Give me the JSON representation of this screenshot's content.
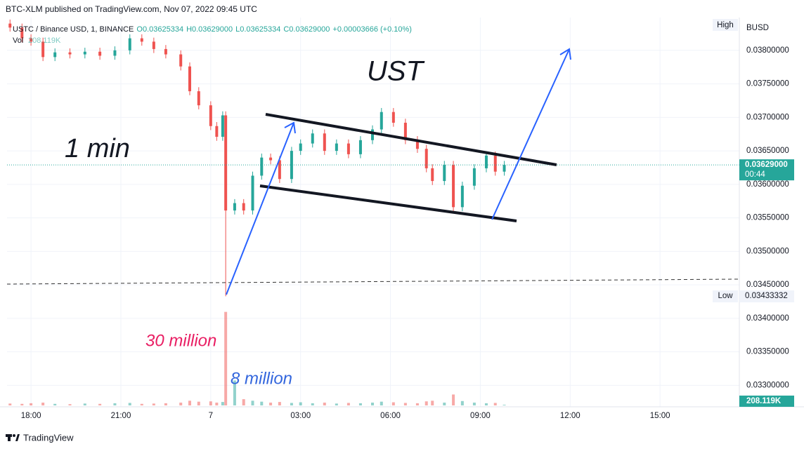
{
  "header": {
    "published": "BTC-XLM published on TradingView.com, Nov 07, 2022 09:45 UTC",
    "legend": [
      "USTC / Binance USD, 1, BINANCE",
      "O0.03625334",
      "H0.03629000",
      "L0.03625334",
      "C0.03629000",
      "+0.00003666 (+0.10%)"
    ],
    "volume_label": "Vol",
    "volume_value": "208.119K"
  },
  "chart_data": {
    "type": "candlestick",
    "x": [
      17.3,
      17.7,
      18.0,
      18.4,
      18.8,
      19.3,
      19.8,
      20.3,
      20.8,
      21.3,
      21.7,
      22.1,
      22.5,
      23.0,
      23.3,
      23.6,
      24.0,
      24.2,
      24.4,
      24.5,
      24.8,
      25.1,
      25.4,
      25.7,
      26.0,
      26.3,
      26.7,
      27.0,
      27.4,
      27.8,
      28.2,
      28.6,
      29.0,
      29.4,
      29.7,
      30.1,
      30.5,
      30.9,
      31.2,
      31.4,
      31.8,
      32.1,
      32.4,
      32.8,
      33.2,
      33.5,
      33.8
    ],
    "open": [
      0.0384,
      0.03834,
      0.03818,
      0.03813,
      0.0379,
      0.03797,
      0.03794,
      0.03798,
      0.03792,
      0.038,
      0.03818,
      0.03813,
      0.03802,
      0.03794,
      0.03776,
      0.03739,
      0.03718,
      0.03687,
      0.03671,
      0.03703,
      0.03561,
      0.03572,
      0.03561,
      0.03613,
      0.0364,
      0.03636,
      0.03608,
      0.0365,
      0.03661,
      0.03676,
      0.0365,
      0.03661,
      0.03645,
      0.03666,
      0.03682,
      0.03708,
      0.03692,
      0.03666,
      0.03653,
      0.03624,
      0.03605,
      0.03629,
      0.03566,
      0.03598,
      0.03624,
      0.03643,
      0.03619
    ],
    "high": [
      0.03846,
      0.0384,
      0.03824,
      0.03819,
      0.03803,
      0.03803,
      0.03804,
      0.03804,
      0.03806,
      0.03824,
      0.03824,
      0.03819,
      0.03808,
      0.038,
      0.03782,
      0.03745,
      0.03724,
      0.03693,
      0.03709,
      0.03709,
      0.03578,
      0.03578,
      0.03619,
      0.03646,
      0.03646,
      0.03642,
      0.03656,
      0.03667,
      0.03682,
      0.03682,
      0.03667,
      0.03667,
      0.03672,
      0.03688,
      0.03714,
      0.03714,
      0.03698,
      0.03672,
      0.03659,
      0.0363,
      0.03635,
      0.03635,
      0.03604,
      0.0363,
      0.03649,
      0.03649,
      0.03635
    ],
    "low": [
      0.03828,
      0.03812,
      0.03807,
      0.03784,
      0.03784,
      0.03788,
      0.03788,
      0.03786,
      0.03786,
      0.03794,
      0.03807,
      0.03796,
      0.03788,
      0.0377,
      0.03733,
      0.03712,
      0.03681,
      0.03665,
      0.03665,
      0.03433,
      0.03555,
      0.03555,
      0.03555,
      0.03607,
      0.0363,
      0.03602,
      0.03602,
      0.03644,
      0.03655,
      0.03644,
      0.03644,
      0.03639,
      0.03639,
      0.0366,
      0.03676,
      0.03686,
      0.0366,
      0.03647,
      0.03618,
      0.03599,
      0.03599,
      0.0356,
      0.0356,
      0.03592,
      0.03618,
      0.03613,
      0.03613
    ],
    "close": [
      0.03834,
      0.03818,
      0.03813,
      0.0379,
      0.03797,
      0.03794,
      0.03798,
      0.03792,
      0.038,
      0.03818,
      0.03813,
      0.03802,
      0.03794,
      0.03776,
      0.03739,
      0.03718,
      0.03687,
      0.03671,
      0.03703,
      0.03561,
      0.03572,
      0.03561,
      0.03613,
      0.0364,
      0.03636,
      0.03608,
      0.0365,
      0.03661,
      0.03676,
      0.0365,
      0.03661,
      0.03645,
      0.03666,
      0.03682,
      0.03708,
      0.03692,
      0.03666,
      0.03653,
      0.03624,
      0.03605,
      0.03629,
      0.03566,
      0.03598,
      0.03624,
      0.03643,
      0.03619,
      0.03629
    ],
    "volume": [
      600000,
      500000,
      700000,
      900000,
      500000,
      400000,
      600000,
      500000,
      700000,
      800000,
      500000,
      600000,
      700000,
      900000,
      1500000,
      1200000,
      1300000,
      900000,
      1100000,
      30000000,
      8000000,
      2000000,
      1500000,
      1200000,
      900000,
      1100000,
      800000,
      1000000,
      700000,
      900000,
      600000,
      800000,
      700000,
      900000,
      1200000,
      1000000,
      800000,
      700000,
      1300000,
      1500000,
      900000,
      3500000,
      1400000,
      900000,
      700000,
      800000,
      208119
    ],
    "up_color": "#26a69a",
    "down_color": "#ef5350",
    "xlim": [
      17.2,
      41.6
    ],
    "xticks": [
      {
        "value": 18,
        "label": "18:00"
      },
      {
        "value": 21,
        "label": "21:00"
      },
      {
        "value": 24,
        "label": "7"
      },
      {
        "value": 27,
        "label": "03:00"
      },
      {
        "value": 30,
        "label": "06:00"
      },
      {
        "value": 33,
        "label": "09:00"
      },
      {
        "value": 36,
        "label": "12:00"
      },
      {
        "value": 39,
        "label": "15:00"
      }
    ],
    "ylim": [
      0.03268,
      0.03849
    ],
    "yticks": [
      {
        "value": 0.033,
        "label": "0.03300000"
      },
      {
        "value": 0.0335,
        "label": "0.03350000"
      },
      {
        "value": 0.034,
        "label": "0.03400000"
      },
      {
        "value": 0.0345,
        "label": "0.03450000"
      },
      {
        "value": 0.035,
        "label": "0.03500000"
      },
      {
        "value": 0.0355,
        "label": "0.03550000"
      },
      {
        "value": 0.036,
        "label": "0.03600000"
      },
      {
        "value": 0.0365,
        "label": "0.03650000"
      },
      {
        "value": 0.037,
        "label": "0.03700000"
      },
      {
        "value": 0.0375,
        "label": "0.03750000"
      },
      {
        "value": 0.038,
        "label": "0.03800000"
      }
    ],
    "vlim": [
      0,
      36000000
    ],
    "currency": "BUSD",
    "high_label": "High",
    "low_marker": {
      "label": "Low",
      "value": 0.03433332,
      "value_label": "0.03433332"
    },
    "last_price": {
      "value": 0.03629,
      "label": "0.03629000",
      "countdown": "00:44"
    },
    "last_volume": {
      "value": 208119,
      "label": "208.119K"
    },
    "annotations": [
      "UST",
      "1 min",
      "30 million",
      "8 million"
    ]
  },
  "footer": {
    "brand": "TradingView"
  }
}
